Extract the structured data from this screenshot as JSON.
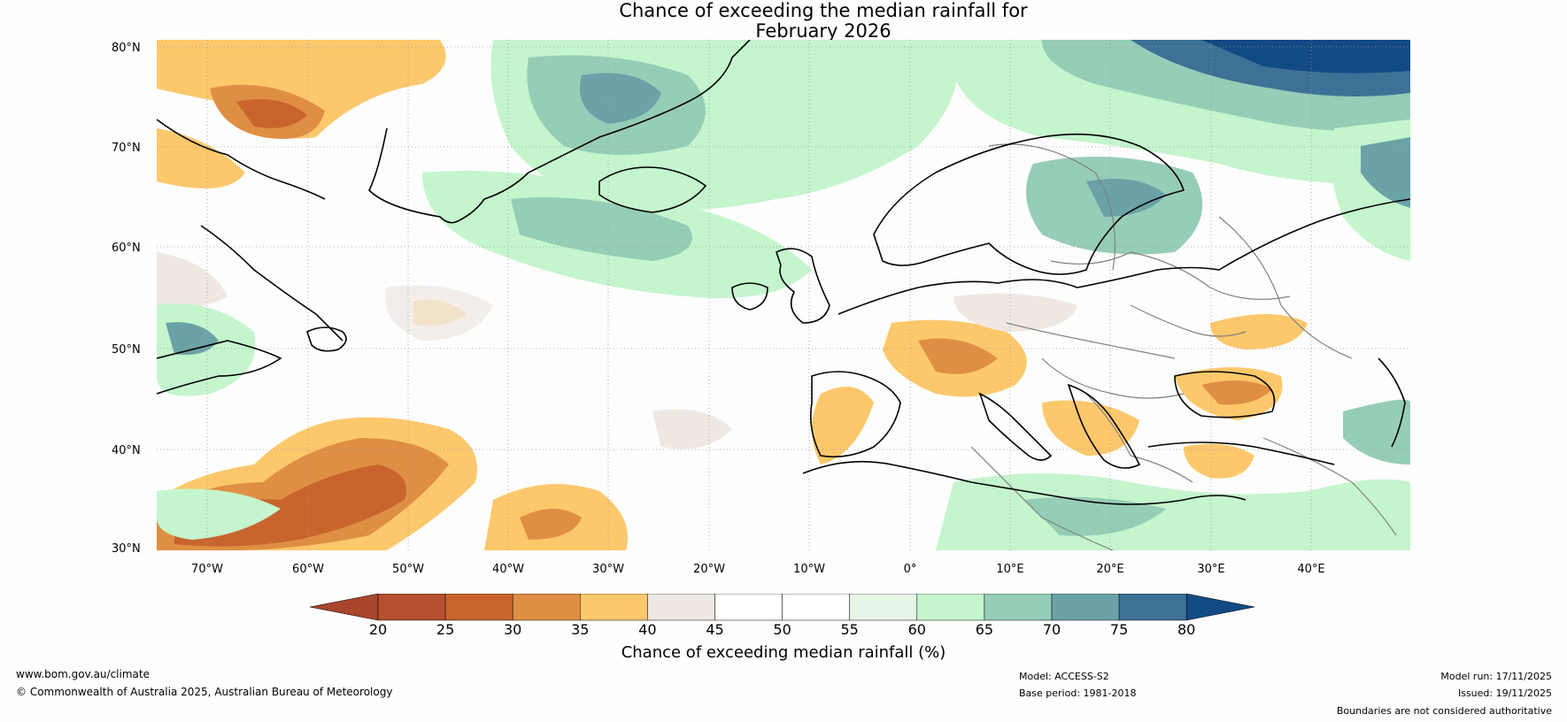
{
  "title": {
    "line1": "Chance of exceeding the median rainfall for",
    "line2": "February 2026"
  },
  "map": {
    "region": "North Atlantic and Europe",
    "lat_labels": [
      "80°N",
      "70°N",
      "60°N",
      "50°N",
      "40°N",
      "30°N"
    ],
    "lon_labels": [
      "70°W",
      "60°W",
      "50°W",
      "40°W",
      "30°W",
      "20°W",
      "10°W",
      "0°",
      "10°E",
      "20°E",
      "30°E",
      "40°E"
    ]
  },
  "colorbar": {
    "ticks": [
      "20",
      "25",
      "30",
      "35",
      "40",
      "45",
      "50",
      "55",
      "60",
      "65",
      "70",
      "75",
      "80"
    ],
    "colors": [
      "#a8452b",
      "#b54f2d",
      "#c9642f",
      "#df8f43",
      "#fdc86c",
      "#efe8e2",
      "#ffffff",
      "#ffffff",
      "#e6f5e5",
      "#c4f5cc",
      "#96cdb6",
      "#6aa2a8",
      "#3e7196",
      "#124a84"
    ],
    "label": "Chance of exceeding median rainfall (%)"
  },
  "footer": {
    "website": "www.bom.gov.au/climate",
    "copyright": "© Commonwealth of Australia 2025, Australian Bureau of Meteorology",
    "model": "Model: ACCESS-S2",
    "base_period": "Base period: 1981-2018",
    "model_run": "Model run: 17/11/2025",
    "issued": "Issued: 19/11/2025",
    "disclaimer": "Boundaries are not considered authoritative"
  }
}
